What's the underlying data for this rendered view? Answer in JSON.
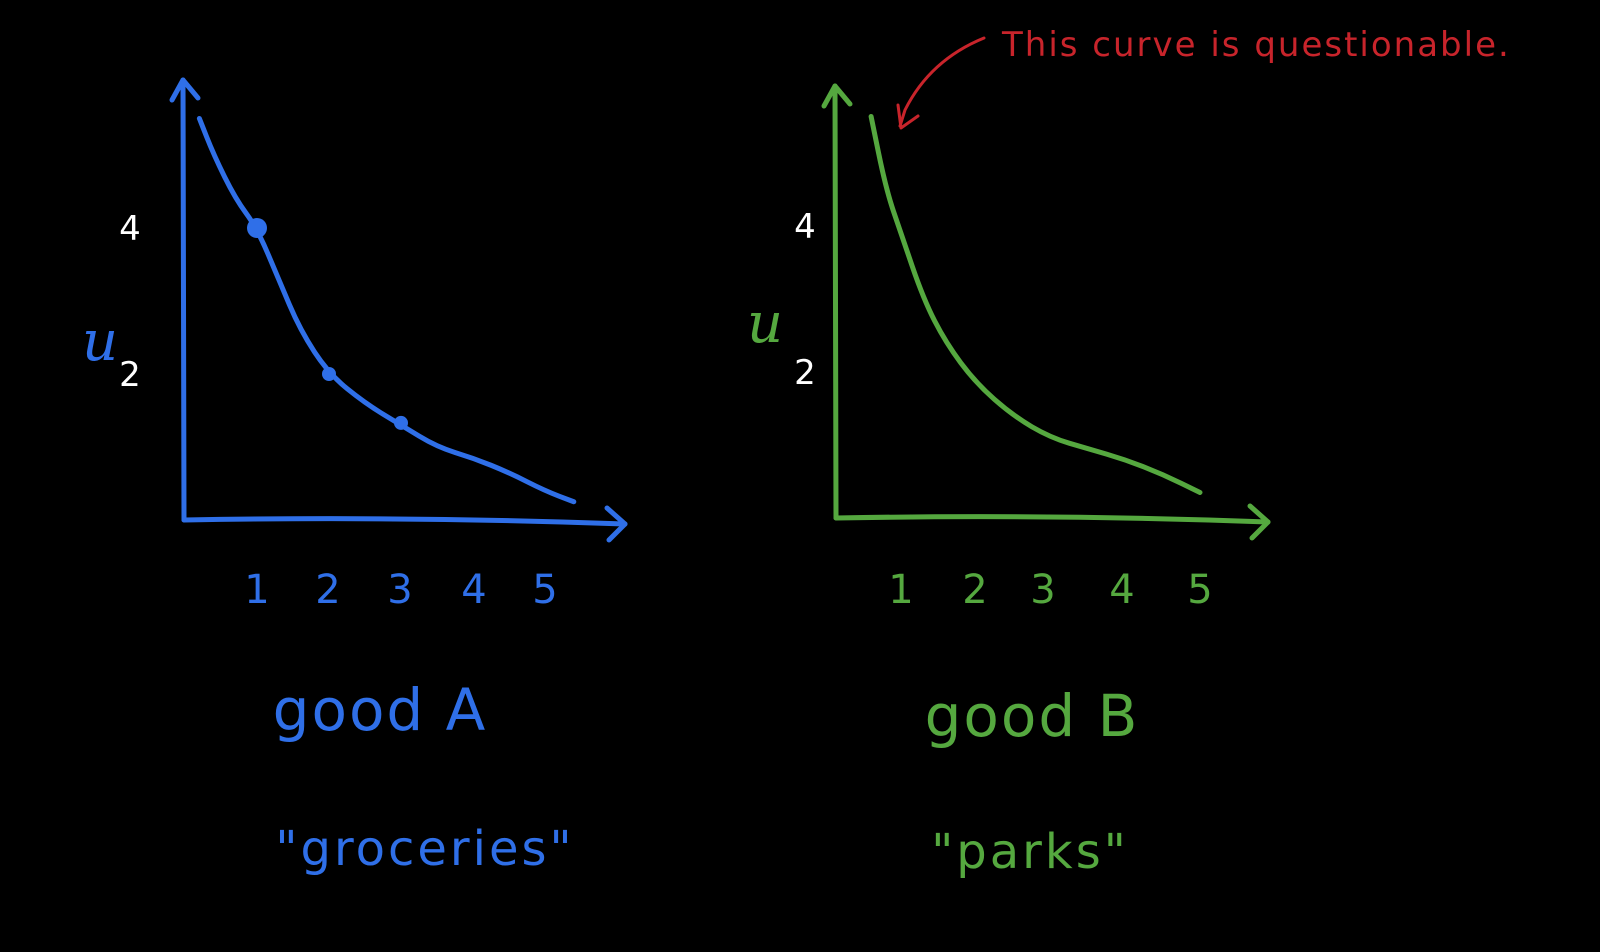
{
  "colors": {
    "background": "#000000",
    "series_a": "#2f6fe8",
    "series_b": "#55a83f",
    "annotation": "#c8242b",
    "y_tick_text": "#ffffff"
  },
  "annotation": {
    "text": "This curve is questionable."
  },
  "chart_data": [
    {
      "type": "line",
      "color": "#2f6fe8",
      "title": "good A",
      "subtitle": "\"groceries\"",
      "ylabel": "u",
      "xlabel": "",
      "xlim": [
        0,
        5.5
      ],
      "ylim": [
        0,
        5.8
      ],
      "x_ticks": [
        "1",
        "2",
        "3",
        "4",
        "5"
      ],
      "y_ticks": [
        {
          "label": "4",
          "value": 4
        },
        {
          "label": "2",
          "value": 2
        }
      ],
      "grid": false,
      "x": [
        0.2,
        0.4,
        0.7,
        1.0,
        1.3,
        1.6,
        2.0,
        2.5,
        3.0,
        3.5,
        4.0,
        4.5,
        5.0,
        5.4
      ],
      "y": [
        5.5,
        5.0,
        4.4,
        4.0,
        3.3,
        2.6,
        2.0,
        1.6,
        1.3,
        1.0,
        0.85,
        0.65,
        0.4,
        0.25
      ],
      "marked_points": [
        {
          "x": 1,
          "y": 4
        },
        {
          "x": 2,
          "y": 2
        },
        {
          "x": 3,
          "y": 1.33
        }
      ]
    },
    {
      "type": "line",
      "color": "#55a83f",
      "title": "good B",
      "subtitle": "\"parks\"",
      "ylabel": "u",
      "xlabel": "",
      "xlim": [
        0,
        5.5
      ],
      "ylim": [
        0,
        5.8
      ],
      "x_ticks": [
        "1",
        "2",
        "3",
        "4",
        "5"
      ],
      "y_ticks": [
        {
          "label": "4",
          "value": 4
        },
        {
          "label": "2",
          "value": 2
        }
      ],
      "grid": false,
      "x": [
        0.6,
        0.8,
        1.0,
        1.3,
        1.6,
        2.0,
        2.5,
        3.0,
        3.5,
        4.0,
        4.5,
        5.0
      ],
      "y": [
        5.5,
        4.5,
        3.9,
        3.0,
        2.4,
        1.85,
        1.4,
        1.1,
        0.95,
        0.8,
        0.6,
        0.35
      ],
      "marked_points": []
    }
  ]
}
